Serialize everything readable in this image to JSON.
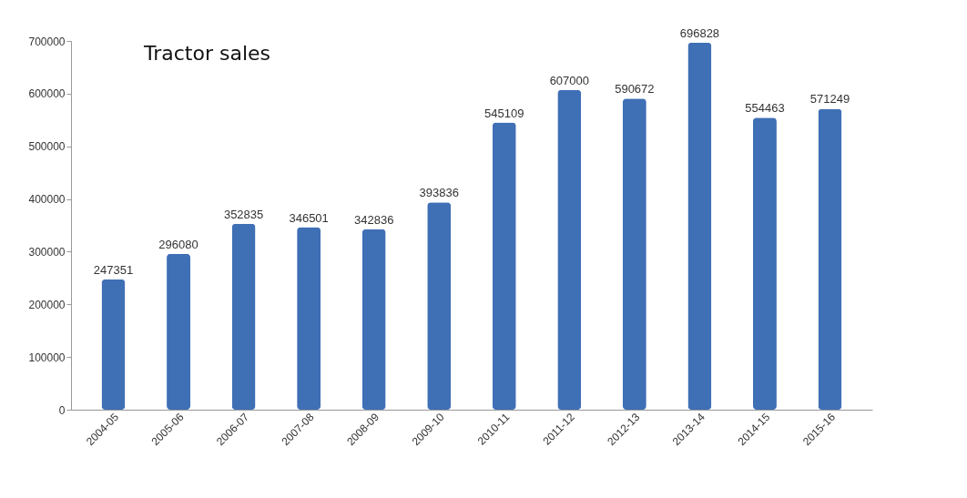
{
  "chart_data": {
    "type": "bar",
    "title": "Tractor sales",
    "categories": [
      "2004-05",
      "2005-06",
      "2006-07",
      "2007-08",
      "2008-09",
      "2009-10",
      "2010-11",
      "2011-12",
      "2012-13",
      "2013-14",
      "2014-15",
      "2015-16"
    ],
    "values": [
      247351,
      296080,
      352835,
      346501,
      342836,
      393836,
      545109,
      607000,
      590672,
      696828,
      554463,
      571249
    ],
    "color": "#3f6fb5",
    "ylim": [
      0,
      700000
    ],
    "yticks": [
      0,
      100000,
      200000,
      300000,
      400000,
      500000,
      600000,
      700000
    ],
    "grid": false,
    "data_labels": true
  }
}
